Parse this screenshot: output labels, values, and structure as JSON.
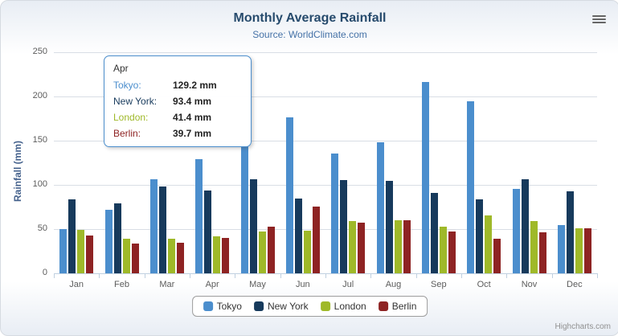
{
  "chart": {
    "title": "Monthly Average Rainfall",
    "subtitle": "Source: WorldClimate.com",
    "y_axis_title": "Rainfall (mm)",
    "credits": "Highcharts.com"
  },
  "chart_data": {
    "type": "bar",
    "title": "Monthly Average Rainfall",
    "subtitle": "Source: WorldClimate.com",
    "xlabel": "",
    "ylabel": "Rainfall (mm)",
    "ylim": [
      0,
      250
    ],
    "y_ticks": [
      0,
      50,
      100,
      150,
      200,
      250
    ],
    "grid": true,
    "legend_position": "bottom",
    "categories": [
      "Jan",
      "Feb",
      "Mar",
      "Apr",
      "May",
      "Jun",
      "Jul",
      "Aug",
      "Sep",
      "Oct",
      "Nov",
      "Dec"
    ],
    "series": [
      {
        "name": "Tokyo",
        "color": "#4b8ecd",
        "values": [
          49.9,
          71.5,
          106.4,
          129.2,
          144.0,
          176.0,
          135.6,
          148.5,
          216.4,
          194.1,
          95.6,
          54.4
        ]
      },
      {
        "name": "New York",
        "color": "#173a5c",
        "values": [
          83.6,
          78.8,
          98.5,
          93.4,
          106.0,
          84.5,
          105.0,
          104.3,
          91.2,
          83.5,
          106.6,
          92.3
        ]
      },
      {
        "name": "London",
        "color": "#9fb929",
        "values": [
          48.9,
          38.8,
          39.3,
          41.4,
          47.0,
          48.3,
          59.0,
          59.6,
          52.4,
          65.2,
          59.3,
          51.2
        ]
      },
      {
        "name": "Berlin",
        "color": "#8e2323",
        "values": [
          42.4,
          33.2,
          34.5,
          39.7,
          52.6,
          75.5,
          57.4,
          60.4,
          47.6,
          39.1,
          46.8,
          51.1
        ]
      }
    ]
  },
  "tooltip": {
    "category": "Apr",
    "rows": [
      {
        "name": "Tokyo:",
        "value": "129.2 mm",
        "color": "#4b8ecd"
      },
      {
        "name": "New York:",
        "value": "93.4 mm",
        "color": "#173a5c"
      },
      {
        "name": "London:",
        "value": "41.4 mm",
        "color": "#9fb929"
      },
      {
        "name": "Berlin:",
        "value": "39.7 mm",
        "color": "#8e2323"
      }
    ],
    "border_color": "#4b8ecd"
  }
}
